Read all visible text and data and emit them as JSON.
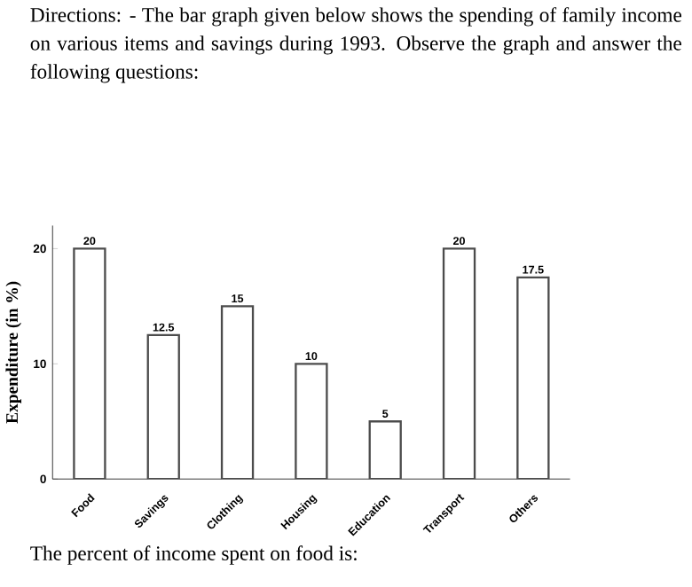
{
  "chart_data": {
    "type": "bar",
    "title": "Directions: - The bar graph given below shows the spending of family income on various items and savings during 1993. Observe the graph and answer the following questions:",
    "ylabel": "Expenditure (in %)",
    "categories": [
      "Food",
      "Savings",
      "Clothing",
      "Housing",
      "Education",
      "Transport",
      "Others"
    ],
    "values": [
      20,
      12.5,
      15,
      10,
      5,
      20,
      17.5
    ],
    "color": "#ffffff",
    "ylim": [
      0,
      22
    ],
    "yticks": [
      0,
      10,
      20
    ],
    "data_labels": true,
    "annotations": [
      "The percent of income spent on food is:"
    ]
  }
}
